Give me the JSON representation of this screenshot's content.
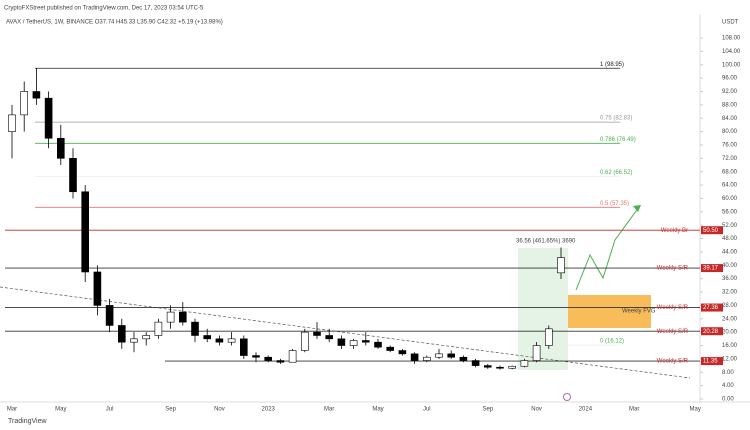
{
  "chart_data": {
    "type": "candlestick",
    "header": "CryptoFXStreet published on TradingView.com, Dec 17, 2023 03:54 UTC-5",
    "title": "AVAX / TetherUS, 1W, BINANCE O37.74 H45.33 L35.90 C42.32 +5.19 (+13.98%)",
    "currency": "USDT",
    "footer": "TradingView",
    "annotation": "36.56 (461.65%) 3690",
    "zone_label": "Weekly FVG",
    "categories": [
      "Mar",
      null,
      null,
      null,
      "May",
      null,
      null,
      null,
      "Jul",
      null,
      null,
      null,
      null,
      "Sep",
      null,
      null,
      null,
      "Nov",
      null,
      null,
      null,
      "2023",
      null,
      null,
      null,
      null,
      "Mar",
      null,
      null,
      null,
      "May",
      null,
      null,
      null,
      "Jul",
      null,
      null,
      null,
      null,
      "Sep",
      null,
      null,
      null,
      "Nov",
      null,
      null,
      null,
      "2024",
      null,
      null,
      null,
      "Mar",
      null,
      null,
      null,
      null,
      "May"
    ],
    "open": [
      80,
      85,
      92,
      90,
      78,
      72,
      62,
      38,
      28,
      22,
      17,
      18,
      19,
      23,
      26,
      23,
      19,
      18,
      17,
      18,
      13,
      12.5,
      11.5,
      11,
      14.5,
      20,
      19,
      18,
      16,
      17.5,
      17,
      15.5,
      14.5,
      13.5,
      11.5,
      12.5,
      13.5,
      12.5,
      11.5,
      10,
      9.5,
      9.2,
      9.8,
      11.5,
      16,
      37.74,
      null,
      null,
      null,
      null,
      null,
      null,
      null,
      null,
      null,
      null,
      null
    ],
    "high": [
      88,
      95,
      98.95,
      92,
      82,
      75,
      64,
      40,
      30,
      24,
      20,
      20,
      24,
      28,
      29,
      24,
      21,
      19,
      20,
      19,
      14,
      13,
      12,
      15,
      21,
      23,
      21,
      19,
      18,
      20,
      18,
      16,
      15,
      14,
      13,
      15,
      14.5,
      13,
      12,
      10.5,
      10,
      10,
      12,
      17,
      22,
      45.33,
      null,
      null,
      null,
      null,
      null,
      null,
      null,
      null,
      null,
      null,
      null
    ],
    "low": [
      72,
      80,
      88,
      75,
      70,
      60,
      35,
      25,
      20,
      15,
      14,
      16,
      18,
      21,
      22,
      17,
      17,
      16,
      16,
      12,
      11,
      11,
      10.5,
      11,
      14,
      18,
      17,
      15,
      15,
      16,
      15,
      14,
      13,
      10.5,
      11,
      12,
      12,
      11,
      9.5,
      9,
      8.8,
      8.9,
      9.5,
      11,
      15,
      35.9,
      null,
      null,
      null,
      null,
      null,
      null,
      null,
      null,
      null,
      null,
      null
    ],
    "close": [
      85,
      92,
      90,
      78,
      72,
      62,
      38,
      28,
      22,
      17,
      18,
      19,
      23,
      26,
      23,
      19,
      18,
      17,
      18,
      13,
      12.5,
      11.5,
      11,
      14.5,
      20,
      19,
      18,
      16,
      17.5,
      17,
      15.5,
      14.5,
      13.5,
      11.5,
      12.5,
      13.5,
      12.5,
      11.5,
      10,
      9.5,
      9.2,
      9.8,
      11.5,
      16,
      21,
      42.32,
      null,
      null,
      null,
      null,
      null,
      null,
      null,
      null,
      null,
      null,
      null
    ],
    "up_color": "#ffffff",
    "down_color": "#000000",
    "ylim": [
      0,
      108
    ],
    "yticks": [
      {
        "value": 0,
        "label": "0.00"
      },
      {
        "value": 4,
        "label": "4.00"
      },
      {
        "value": 8,
        "label": "8.00"
      },
      {
        "value": 12,
        "label": "12.00"
      },
      {
        "value": 16,
        "label": "16.00"
      },
      {
        "value": 20,
        "label": "20.00"
      },
      {
        "value": 24,
        "label": "24.00"
      },
      {
        "value": 28,
        "label": "28.00"
      },
      {
        "value": 32,
        "label": "32.00"
      },
      {
        "value": 36,
        "label": "36.00"
      },
      {
        "value": 40,
        "label": "40.00"
      },
      {
        "value": 44,
        "label": "44.00"
      },
      {
        "value": 48,
        "label": "48.00"
      },
      {
        "value": 52,
        "label": "52.00"
      },
      {
        "value": 56,
        "label": "56.00"
      },
      {
        "value": 60,
        "label": "60.00"
      },
      {
        "value": 64,
        "label": "64.00"
      },
      {
        "value": 68,
        "label": "68.00"
      },
      {
        "value": 72,
        "label": "72.00"
      },
      {
        "value": 76,
        "label": "76.00"
      },
      {
        "value": 80,
        "label": "80.00"
      },
      {
        "value": 84,
        "label": "84.00"
      },
      {
        "value": 88,
        "label": "88.00"
      },
      {
        "value": 92,
        "label": "92.00"
      },
      {
        "value": 96,
        "label": "96.00"
      },
      {
        "value": 100,
        "label": "100.00"
      },
      {
        "value": 104,
        "label": "104.00"
      },
      {
        "value": 108,
        "label": "108.00"
      }
    ],
    "fib_levels": [
      {
        "label": "1 (98.95)",
        "value": 98.95,
        "color": "#222222"
      },
      {
        "label": "0.75 (82.83)",
        "value": 82.83,
        "color": "#999999"
      },
      {
        "label": "0.786 (76.49)",
        "value": 76.49,
        "color": "#4caf50"
      },
      {
        "label": "0.62 (66.52)",
        "value": 66.52,
        "color": "#ffffff"
      },
      {
        "label": "0.5 (57.35)",
        "value": 57.35,
        "color": "#e57373"
      },
      {
        "label": "0 (16.12)",
        "value": 16.12,
        "color": "#ffffff"
      }
    ],
    "sr_levels": [
      {
        "label": "Weekly Br",
        "value": 50.5,
        "value_label": "50.50",
        "color": "#c62828"
      },
      {
        "label": "Weekly S/R",
        "value": 39.17,
        "value_label": "39.17",
        "color": "#c62828"
      },
      {
        "label": "Weekly S/R",
        "value": 27.36,
        "value_label": "27.36",
        "color": "#c62828"
      },
      {
        "label": "Weekly S/R",
        "value": 20.28,
        "value_label": "20.28",
        "color": "#c62828"
      },
      {
        "label": "Weekly S/R",
        "value": 11.35,
        "value_label": "11.35",
        "color": "#c62828"
      }
    ]
  }
}
